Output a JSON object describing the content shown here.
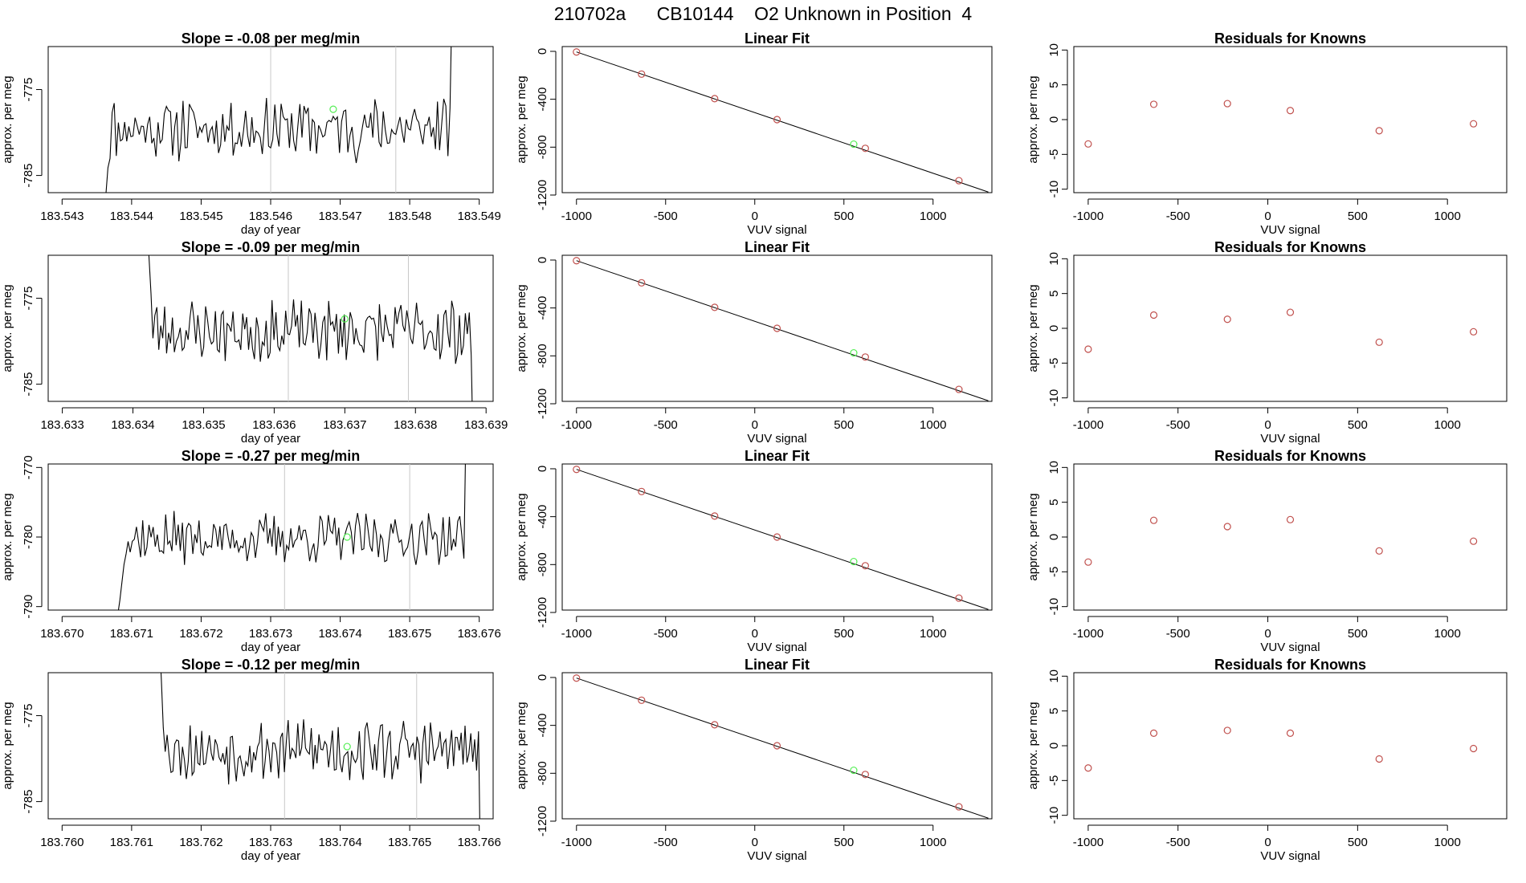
{
  "page": {
    "title_parts": [
      "210702a",
      "CB10144",
      "O2 Unknown in Position  4"
    ]
  },
  "colors": {
    "signal_line": "#000000",
    "known_point": "#c0504d",
    "unknown_point": "#55ee55",
    "injection_marker": "#c8c8c8",
    "axis": "#000000"
  },
  "chart_data": [
    {
      "type": "line",
      "title": "Slope =  -0.08  per meg/min",
      "xlabel": "day of year",
      "ylabel": "approx. per meg",
      "xlim": [
        183.5428,
        183.5492
      ],
      "ylim": [
        -787,
        -770
      ],
      "xticks": [
        183.543,
        183.544,
        183.545,
        183.546,
        183.547,
        183.548,
        183.549
      ],
      "xtick_labels": [
        "183.543",
        "183.544",
        "183.545",
        "183.546",
        "183.547",
        "183.548",
        "183.549"
      ],
      "yticks": [
        -785,
        -775
      ],
      "ytick_labels": [
        "-785",
        "-775"
      ],
      "markers": [
        183.546,
        183.5478
      ],
      "start": 183.5436,
      "end": 183.5487,
      "level": -779.5,
      "amp": 3,
      "seed": 11,
      "unknown_point": {
        "x": 183.5469,
        "y": -777.3
      }
    },
    {
      "type": "scatter",
      "title": "Linear Fit",
      "xlabel": "VUV signal",
      "ylabel": "approx. per meg",
      "xlim": [
        -1080,
        1330
      ],
      "ylim": [
        -1180,
        40
      ],
      "xticks": [
        -1000,
        -500,
        0,
        500,
        1000
      ],
      "xtick_labels": [
        "-1000",
        "-500",
        "0",
        "500",
        "1000"
      ],
      "yticks": [
        0,
        -400,
        -800,
        -1200
      ],
      "ytick_labels": [
        "0",
        "-400",
        "-800",
        "-1200"
      ],
      "fit_line": {
        "x": [
          -1000,
          1310
        ],
        "y": [
          -5,
          -1175
        ]
      },
      "known_points": {
        "x": [
          -1000,
          -635,
          -225,
          125,
          620,
          1145
        ],
        "y": [
          -5,
          -190,
          -395,
          -570,
          -810,
          -1080
        ]
      },
      "unknown_point": {
        "x": 555,
        "y": -775
      }
    },
    {
      "type": "scatter",
      "title": "Residuals for Knowns",
      "xlabel": "VUV signal",
      "ylabel": "approx. per meg",
      "xlim": [
        -1080,
        1330
      ],
      "ylim": [
        -10.5,
        10.5
      ],
      "xticks": [
        -1000,
        -500,
        0,
        500,
        1000
      ],
      "xtick_labels": [
        "-1000",
        "-500",
        "0",
        "500",
        "1000"
      ],
      "yticks": [
        -10,
        -5,
        0,
        5,
        10
      ],
      "ytick_labels": [
        "-10",
        "-5",
        "0",
        "5",
        "10"
      ],
      "known_points": {
        "x": [
          -1000,
          -635,
          -225,
          125,
          620,
          1145
        ],
        "y": [
          -3.5,
          2.2,
          2.3,
          1.3,
          -1.6,
          -0.6
        ]
      }
    },
    {
      "type": "line",
      "title": "Slope =  -0.09  per meg/min",
      "xlabel": "day of year",
      "ylabel": "approx. per meg",
      "xlim": [
        183.6328,
        183.6391
      ],
      "ylim": [
        -787,
        -770
      ],
      "xticks": [
        183.633,
        183.634,
        183.635,
        183.636,
        183.637,
        183.638,
        183.639
      ],
      "xtick_labels": [
        "183.633",
        "183.634",
        "183.635",
        "183.636",
        "183.637",
        "183.638",
        "183.639"
      ],
      "yticks": [
        -785,
        -775
      ],
      "ytick_labels": [
        "-785",
        "-775"
      ],
      "markers": [
        183.6362,
        183.6379
      ],
      "start": 183.6342,
      "end": 183.6389,
      "level": -778.8,
      "amp": 3,
      "seed": 23,
      "unknown_point": {
        "x": 183.637,
        "y": -777.4
      }
    },
    {
      "type": "scatter",
      "title": "Linear Fit",
      "xlabel": "VUV signal",
      "ylabel": "approx. per meg",
      "xlim": [
        -1080,
        1330
      ],
      "ylim": [
        -1180,
        40
      ],
      "xticks": [
        -1000,
        -500,
        0,
        500,
        1000
      ],
      "xtick_labels": [
        "-1000",
        "-500",
        "0",
        "500",
        "1000"
      ],
      "yticks": [
        0,
        -400,
        -800,
        -1200
      ],
      "ytick_labels": [
        "0",
        "-400",
        "-800",
        "-1200"
      ],
      "fit_line": {
        "x": [
          -1000,
          1310
        ],
        "y": [
          -5,
          -1175
        ]
      },
      "known_points": {
        "x": [
          -1000,
          -635,
          -225,
          125,
          620,
          1145
        ],
        "y": [
          -5,
          -190,
          -395,
          -570,
          -810,
          -1080
        ]
      },
      "unknown_point": {
        "x": 555,
        "y": -775
      }
    },
    {
      "type": "scatter",
      "title": "Residuals for Knowns",
      "xlabel": "VUV signal",
      "ylabel": "approx. per meg",
      "xlim": [
        -1080,
        1330
      ],
      "ylim": [
        -10.5,
        10.5
      ],
      "xticks": [
        -1000,
        -500,
        0,
        500,
        1000
      ],
      "xtick_labels": [
        "-1000",
        "-500",
        "0",
        "500",
        "1000"
      ],
      "yticks": [
        -10,
        -5,
        0,
        5,
        10
      ],
      "ytick_labels": [
        "-10",
        "-5",
        "0",
        "5",
        "10"
      ],
      "known_points": {
        "x": [
          -1000,
          -635,
          -225,
          125,
          620,
          1145
        ],
        "y": [
          -3.0,
          1.9,
          1.3,
          2.3,
          -2.0,
          -0.5
        ]
      }
    },
    {
      "type": "line",
      "title": "Slope =  -0.27  per meg/min",
      "xlabel": "day of year",
      "ylabel": "approx. per meg",
      "xlim": [
        183.6698,
        183.6762
      ],
      "ylim": [
        -790.5,
        -769.5
      ],
      "xticks": [
        183.67,
        183.671,
        183.672,
        183.673,
        183.674,
        183.675,
        183.676
      ],
      "xtick_labels": [
        "183.670",
        "183.671",
        "183.672",
        "183.673",
        "183.674",
        "183.675",
        "183.676"
      ],
      "yticks": [
        -790,
        -780,
        -770
      ],
      "ytick_labels": [
        "-790",
        "-780",
        "-770"
      ],
      "markers": [
        183.6732,
        183.675
      ],
      "start": 183.6708,
      "end": 183.6759,
      "level": -780.2,
      "amp": 3,
      "seed": 37,
      "unknown_point": {
        "x": 183.6741,
        "y": -780.0
      }
    },
    {
      "type": "scatter",
      "title": "Linear Fit",
      "xlabel": "VUV signal",
      "ylabel": "approx. per meg",
      "xlim": [
        -1080,
        1330
      ],
      "ylim": [
        -1180,
        40
      ],
      "xticks": [
        -1000,
        -500,
        0,
        500,
        1000
      ],
      "xtick_labels": [
        "-1000",
        "-500",
        "0",
        "500",
        "1000"
      ],
      "yticks": [
        0,
        -400,
        -800,
        -1200
      ],
      "ytick_labels": [
        "0",
        "-400",
        "-800",
        "-1200"
      ],
      "fit_line": {
        "x": [
          -1000,
          1310
        ],
        "y": [
          -5,
          -1175
        ]
      },
      "known_points": {
        "x": [
          -1000,
          -635,
          -225,
          125,
          620,
          1145
        ],
        "y": [
          -5,
          -190,
          -395,
          -570,
          -810,
          -1080
        ]
      },
      "unknown_point": {
        "x": 555,
        "y": -775
      }
    },
    {
      "type": "scatter",
      "title": "Residuals for Knowns",
      "xlabel": "VUV signal",
      "ylabel": "approx. per meg",
      "xlim": [
        -1080,
        1330
      ],
      "ylim": [
        -10.5,
        10.5
      ],
      "xticks": [
        -1000,
        -500,
        0,
        500,
        1000
      ],
      "xtick_labels": [
        "-1000",
        "-500",
        "0",
        "500",
        "1000"
      ],
      "yticks": [
        -10,
        -5,
        0,
        5,
        10
      ],
      "ytick_labels": [
        "-10",
        "-5",
        "0",
        "5",
        "10"
      ],
      "known_points": {
        "x": [
          -1000,
          -635,
          -225,
          125,
          620,
          1145
        ],
        "y": [
          -3.6,
          2.4,
          1.5,
          2.5,
          -2.0,
          -0.6
        ]
      }
    },
    {
      "type": "line",
      "title": "Slope =  -0.12  per meg/min",
      "xlabel": "day of year",
      "ylabel": "approx. per meg",
      "xlim": [
        183.7598,
        183.7662
      ],
      "ylim": [
        -787,
        -770
      ],
      "xticks": [
        183.76,
        183.761,
        183.762,
        183.763,
        183.764,
        183.765,
        183.766
      ],
      "xtick_labels": [
        "183.760",
        "183.761",
        "183.762",
        "183.763",
        "183.764",
        "183.765",
        "183.766"
      ],
      "yticks": [
        -785,
        -775
      ],
      "ytick_labels": [
        "-785",
        "-775"
      ],
      "markers": [
        183.7632,
        183.7651
      ],
      "start": 183.7614,
      "end": 183.7661,
      "level": -779.0,
      "amp": 3,
      "seed": 53,
      "unknown_point": {
        "x": 183.7641,
        "y": -778.6
      }
    },
    {
      "type": "scatter",
      "title": "Linear Fit",
      "xlabel": "VUV signal",
      "ylabel": "approx. per meg",
      "xlim": [
        -1080,
        1330
      ],
      "ylim": [
        -1180,
        40
      ],
      "xticks": [
        -1000,
        -500,
        0,
        500,
        1000
      ],
      "xtick_labels": [
        "-1000",
        "-500",
        "0",
        "500",
        "1000"
      ],
      "yticks": [
        0,
        -400,
        -800,
        -1200
      ],
      "ytick_labels": [
        "0",
        "-400",
        "-800",
        "-1200"
      ],
      "fit_line": {
        "x": [
          -1000,
          1310
        ],
        "y": [
          -5,
          -1175
        ]
      },
      "known_points": {
        "x": [
          -1000,
          -635,
          -225,
          125,
          620,
          1145
        ],
        "y": [
          -5,
          -190,
          -395,
          -570,
          -810,
          -1080
        ]
      },
      "unknown_point": {
        "x": 555,
        "y": -775
      }
    },
    {
      "type": "scatter",
      "title": "Residuals for Knowns",
      "xlabel": "VUV signal",
      "ylabel": "approx. per meg",
      "xlim": [
        -1080,
        1330
      ],
      "ylim": [
        -10.5,
        10.5
      ],
      "xticks": [
        -1000,
        -500,
        0,
        500,
        1000
      ],
      "xtick_labels": [
        "-1000",
        "-500",
        "0",
        "500",
        "1000"
      ],
      "yticks": [
        -10,
        -5,
        0,
        5,
        10
      ],
      "ytick_labels": [
        "-10",
        "-5",
        "0",
        "5",
        "10"
      ],
      "known_points": {
        "x": [
          -1000,
          -635,
          -225,
          125,
          620,
          1145
        ],
        "y": [
          -3.2,
          1.8,
          2.2,
          1.8,
          -1.9,
          -0.4
        ]
      }
    }
  ]
}
